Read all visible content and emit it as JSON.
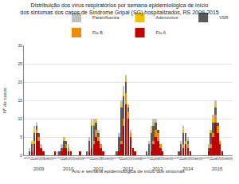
{
  "chart_data": {
    "type": "bar",
    "title": "Distribuição dos vírus respiratórios por semana epidemiológica de início dos sintomas dos casos de Síndrome Gripal (SG) hospitalizados, RS 2009-2015",
    "x_label": "Ano e semana epidemiológica de início dos sintomas",
    "y_label": "Nº de casos",
    "categories": [
      "1",
      "5",
      "9",
      "13",
      "17",
      "21",
      "25",
      "29",
      "33",
      "37",
      "41",
      "45",
      "49",
      "1",
      "5",
      "9",
      "13",
      "17",
      "21",
      "25",
      "29",
      "33",
      "37",
      "41",
      "45",
      "49",
      "1",
      "5",
      "9",
      "13",
      "17",
      "21",
      "25",
      "29",
      "33",
      "37",
      "41",
      "45",
      "49",
      "1",
      "5",
      "9",
      "13",
      "17",
      "21",
      "25",
      "29",
      "33",
      "37",
      "41",
      "45",
      "49",
      "1",
      "5",
      "9",
      "13",
      "17",
      "21",
      "25",
      "29",
      "33",
      "37",
      "41",
      "45",
      "49",
      "1",
      "5",
      "9",
      "13",
      "17",
      "21",
      "25",
      "29",
      "33",
      "37",
      "41",
      "45",
      "49",
      "1",
      "5",
      "9",
      "13",
      "17",
      "21",
      "25",
      "29",
      "33",
      "37",
      "41",
      "45",
      "49"
    ],
    "annotations": [
      {
        "text": "2009",
        "x": 6
      },
      {
        "text": "2010",
        "x": 19
      },
      {
        "text": "2011",
        "x": 32
      },
      {
        "text": "2012",
        "x": 45
      },
      {
        "text": "2013",
        "x": 58
      },
      {
        "text": "2014",
        "x": 71
      },
      {
        "text": "2015",
        "x": 84
      }
    ],
    "series": [
      {
        "name": "Flu A",
        "color": "#c00000",
        "values": [
          0,
          0,
          0,
          1,
          3,
          6,
          4,
          2,
          1,
          0,
          0,
          0,
          0,
          1,
          0,
          0,
          1,
          2,
          2,
          1,
          1,
          0,
          0,
          0,
          1,
          0,
          0,
          0,
          1,
          2,
          3,
          5,
          4,
          2,
          1,
          0,
          0,
          0,
          0,
          0,
          0,
          1,
          3,
          8,
          14,
          10,
          5,
          2,
          1,
          0,
          0,
          0,
          0,
          0,
          0,
          1,
          3,
          5,
          4,
          2,
          1,
          0,
          0,
          0,
          0,
          0,
          0,
          0,
          1,
          2,
          3,
          2,
          1,
          0,
          0,
          0,
          0,
          0,
          0,
          0,
          1,
          2,
          5,
          9,
          6,
          3,
          1,
          0,
          0,
          0,
          0
        ]
      },
      {
        "name": "Flu B",
        "color": "#f08c00",
        "values": [
          0,
          0,
          0,
          0,
          1,
          1,
          1,
          0,
          0,
          0,
          0,
          0,
          0,
          0,
          0,
          0,
          0,
          0,
          1,
          1,
          0,
          0,
          0,
          0,
          0,
          0,
          0,
          0,
          0,
          0,
          1,
          2,
          1,
          1,
          0,
          0,
          0,
          0,
          0,
          0,
          0,
          0,
          1,
          2,
          3,
          2,
          1,
          0,
          0,
          0,
          0,
          0,
          0,
          0,
          0,
          0,
          1,
          2,
          2,
          1,
          0,
          0,
          0,
          0,
          0,
          0,
          0,
          0,
          0,
          1,
          1,
          1,
          0,
          0,
          0,
          0,
          0,
          0,
          0,
          0,
          0,
          1,
          1,
          2,
          2,
          1,
          0,
          0,
          0,
          0,
          0
        ]
      },
      {
        "name": "VSR",
        "color": "#595959",
        "values": [
          0,
          0,
          1,
          2,
          2,
          1,
          1,
          0,
          0,
          0,
          0,
          0,
          0,
          0,
          0,
          1,
          1,
          2,
          1,
          0,
          0,
          0,
          0,
          0,
          0,
          0,
          0,
          1,
          3,
          6,
          4,
          2,
          1,
          0,
          0,
          0,
          0,
          0,
          0,
          0,
          1,
          4,
          9,
          6,
          3,
          1,
          0,
          0,
          0,
          0,
          0,
          0,
          0,
          1,
          3,
          5,
          4,
          2,
          1,
          0,
          0,
          0,
          0,
          0,
          0,
          0,
          0,
          1,
          2,
          3,
          2,
          1,
          0,
          0,
          0,
          0,
          0,
          0,
          0,
          0,
          1,
          3,
          3,
          2,
          1,
          0,
          0,
          0,
          0,
          0,
          0
        ]
      },
      {
        "name": "Adenovírus",
        "color": "#f2c200",
        "values": [
          0,
          0,
          0,
          1,
          1,
          0,
          0,
          0,
          0,
          0,
          0,
          0,
          0,
          0,
          0,
          0,
          0,
          1,
          0,
          0,
          0,
          0,
          0,
          0,
          0,
          0,
          0,
          0,
          0,
          1,
          1,
          1,
          0,
          0,
          0,
          0,
          0,
          0,
          0,
          0,
          0,
          0,
          1,
          1,
          1,
          1,
          0,
          0,
          0,
          0,
          0,
          0,
          0,
          0,
          0,
          1,
          1,
          0,
          0,
          0,
          0,
          0,
          0,
          0,
          0,
          0,
          0,
          0,
          0,
          1,
          0,
          0,
          0,
          0,
          0,
          0,
          0,
          0,
          0,
          0,
          0,
          1,
          1,
          1,
          0,
          0,
          0,
          0,
          0,
          0,
          0
        ]
      },
      {
        "name": "Parainfluenza",
        "color": "#bfbfbf",
        "values": [
          0,
          0,
          1,
          0,
          1,
          1,
          0,
          1,
          0,
          0,
          0,
          0,
          0,
          0,
          1,
          0,
          1,
          0,
          0,
          1,
          0,
          0,
          0,
          0,
          0,
          0,
          0,
          0,
          1,
          1,
          1,
          0,
          1,
          0,
          0,
          0,
          0,
          0,
          0,
          0,
          0,
          1,
          1,
          2,
          1,
          0,
          1,
          0,
          0,
          0,
          0,
          0,
          0,
          0,
          1,
          1,
          1,
          1,
          0,
          0,
          0,
          0,
          0,
          0,
          0,
          0,
          0,
          0,
          1,
          1,
          0,
          1,
          0,
          0,
          0,
          0,
          0,
          0,
          0,
          0,
          1,
          0,
          1,
          1,
          0,
          0,
          0,
          0,
          0,
          0,
          0
        ]
      }
    ],
    "stacked": true,
    "ylim": [
      0,
      30
    ],
    "yticks": [
      0,
      5,
      10,
      15,
      20,
      25,
      30
    ],
    "grid": true,
    "legend": "top-right"
  }
}
